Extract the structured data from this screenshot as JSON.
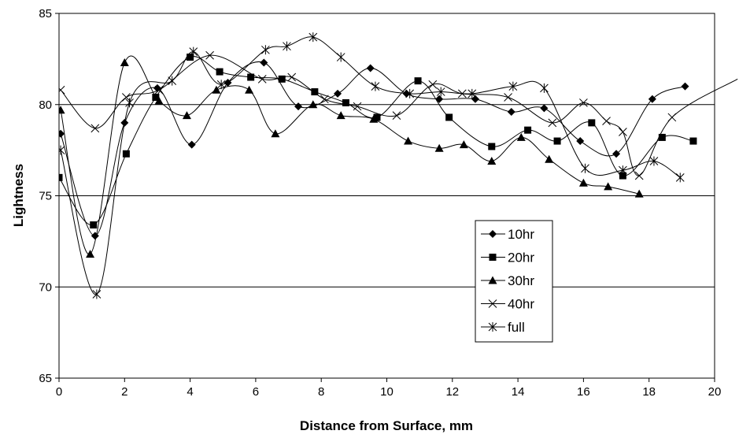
{
  "chart_data": {
    "type": "line",
    "title": "",
    "xlabel": "Distance from Surface, mm",
    "ylabel": "Lightness",
    "xlim": [
      0,
      20
    ],
    "ylim": [
      65,
      85
    ],
    "x_ticks": [
      "0",
      "2",
      "4",
      "6",
      "8",
      "10",
      "12",
      "14",
      "16",
      "18",
      "20"
    ],
    "y_ticks": [
      "65",
      "70",
      "75",
      "80",
      "85"
    ],
    "grid": "horizontal major",
    "smoothed": true,
    "legend_position": "center-right",
    "series": [
      {
        "name": "10hr",
        "marker": "diamond",
        "x": [
          0.05,
          1.1,
          2.0,
          3.0,
          4.05,
          5.15,
          6.25,
          7.3,
          8.5,
          9.5,
          10.6,
          11.6,
          12.7,
          13.8,
          14.8,
          15.9,
          17.0,
          18.1,
          19.1
        ],
        "y": [
          78.4,
          72.8,
          79.0,
          80.9,
          77.8,
          81.2,
          82.3,
          79.9,
          80.6,
          82.0,
          80.6,
          80.3,
          80.3,
          79.6,
          79.8,
          78.0,
          77.3,
          80.3,
          81.0
        ]
      },
      {
        "name": "20hr",
        "marker": "square",
        "x": [
          0.0,
          1.05,
          2.05,
          2.95,
          4.0,
          4.9,
          5.85,
          6.8,
          7.8,
          8.75,
          9.7,
          10.95,
          11.9,
          13.2,
          14.3,
          15.2,
          16.25,
          17.2,
          18.4,
          19.35
        ],
        "y": [
          76.0,
          73.4,
          77.3,
          80.4,
          82.6,
          81.8,
          81.5,
          81.4,
          80.7,
          80.1,
          79.3,
          81.3,
          79.3,
          77.7,
          78.6,
          78.0,
          79.0,
          76.1,
          78.2,
          78.0
        ]
      },
      {
        "name": "30hr",
        "marker": "triangle",
        "x": [
          0.05,
          0.95,
          2.0,
          3.05,
          3.9,
          4.8,
          5.8,
          6.6,
          7.75,
          8.6,
          9.6,
          10.65,
          11.6,
          12.35,
          13.2,
          14.1,
          14.95,
          16.0,
          16.75,
          17.7
        ],
        "y": [
          79.7,
          71.8,
          82.3,
          80.2,
          79.4,
          80.8,
          80.8,
          78.4,
          80.0,
          79.4,
          79.2,
          78.0,
          77.6,
          77.8,
          76.9,
          78.2,
          77.0,
          75.7,
          75.5,
          75.1
        ]
      },
      {
        "name": "40hr",
        "marker": "x",
        "x": [
          0.05,
          1.1,
          2.05,
          3.05,
          4.6,
          6.2,
          7.1,
          8.1,
          9.1,
          10.3,
          11.4,
          12.3,
          13.7,
          15.05,
          16.0,
          16.7,
          17.2,
          17.7,
          18.7,
          20.7
        ],
        "y": [
          80.8,
          78.7,
          80.4,
          80.8,
          82.7,
          81.4,
          81.5,
          80.3,
          79.9,
          79.4,
          81.1,
          80.6,
          80.4,
          79.0,
          80.1,
          79.1,
          78.5,
          76.1,
          79.3,
          81.4
        ]
      },
      {
        "name": "full",
        "marker": "asterisk",
        "x": [
          0.05,
          1.15,
          2.15,
          3.45,
          4.1,
          4.95,
          6.3,
          6.95,
          7.75,
          8.6,
          9.65,
          10.7,
          11.65,
          12.6,
          13.85,
          14.8,
          16.05,
          17.2,
          18.15,
          18.95
        ],
        "y": [
          77.5,
          69.6,
          80.1,
          81.3,
          82.9,
          81.1,
          83.0,
          83.2,
          83.7,
          82.6,
          81.0,
          80.6,
          80.7,
          80.6,
          81.0,
          80.9,
          76.5,
          76.4,
          76.9,
          76.0
        ]
      }
    ]
  }
}
